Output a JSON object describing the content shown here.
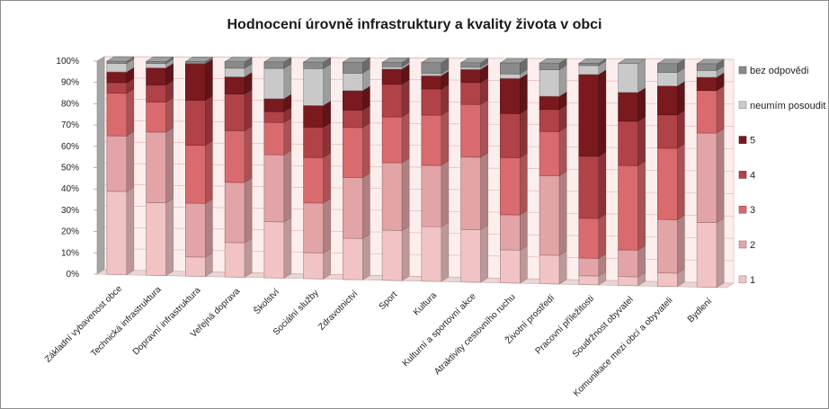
{
  "chart_data": {
    "type": "bar",
    "stacked": true,
    "percent": true,
    "title": "Hodnocení úrovně infrastruktury a kvality života v obci",
    "xlabel": "",
    "ylabel": "",
    "ylim": [
      0,
      100
    ],
    "yticks": [
      "0%",
      "10%",
      "20%",
      "30%",
      "40%",
      "50%",
      "60%",
      "70%",
      "80%",
      "90%",
      "100%"
    ],
    "legend_position": "right",
    "categories": [
      "Základní vybavenost obce",
      "Technická infrastruktura",
      "Dopravní infrastruktura",
      "Veřejná doprava",
      "Školství",
      "Sociální služby",
      "Zdravotnictví",
      "Sport",
      "Kultura",
      "Kulturní a sportovní akce",
      "Atraktivity cestovního ruchu",
      "Životní prostředí",
      "Pracovní příležitosti",
      "Soudržnost obyvatel",
      "Komunikace mezi obcí a obyvateli",
      "Bydlení"
    ],
    "series": [
      {
        "name": "1",
        "color": "#f2c3c4",
        "values": [
          39,
          34,
          9,
          16,
          26,
          12,
          19,
          23,
          25,
          24,
          15,
          13,
          4,
          4,
          6,
          29
        ]
      },
      {
        "name": "2",
        "color": "#e2a4a6",
        "values": [
          26,
          33,
          25,
          28,
          31,
          23,
          28,
          31,
          28,
          33,
          16,
          36,
          8,
          12,
          24,
          40
        ]
      },
      {
        "name": "3",
        "color": "#d96a6e",
        "values": [
          20,
          14,
          27,
          24,
          15,
          21,
          23,
          21,
          23,
          24,
          26,
          20,
          18,
          38,
          32,
          19
        ]
      },
      {
        "name": "4",
        "color": "#b04248",
        "values": [
          5,
          8,
          21,
          17,
          5,
          14,
          8,
          15,
          12,
          10,
          20,
          10,
          28,
          20,
          15,
          0
        ]
      },
      {
        "name": "5",
        "color": "#7a1a1e",
        "values": [
          5,
          8,
          17,
          8,
          6,
          10,
          9,
          7,
          6,
          6,
          16,
          6,
          37,
          13,
          13,
          6
        ]
      },
      {
        "name": "neumím posoudit",
        "color": "#c9c9c9",
        "values": [
          4,
          2,
          0,
          4,
          14,
          17,
          8,
          1,
          1,
          1,
          2,
          12,
          4,
          13,
          6,
          3
        ]
      },
      {
        "name": "bez odpovědi",
        "color": "#8a8a8a",
        "values": [
          1,
          1,
          1,
          3,
          3,
          3,
          5,
          2,
          5,
          2,
          5,
          3,
          1,
          0,
          4,
          3
        ]
      }
    ],
    "legend_order": [
      "bez odpovědi",
      "neumím posoudit",
      "5",
      "4",
      "3",
      "2",
      "1"
    ]
  }
}
